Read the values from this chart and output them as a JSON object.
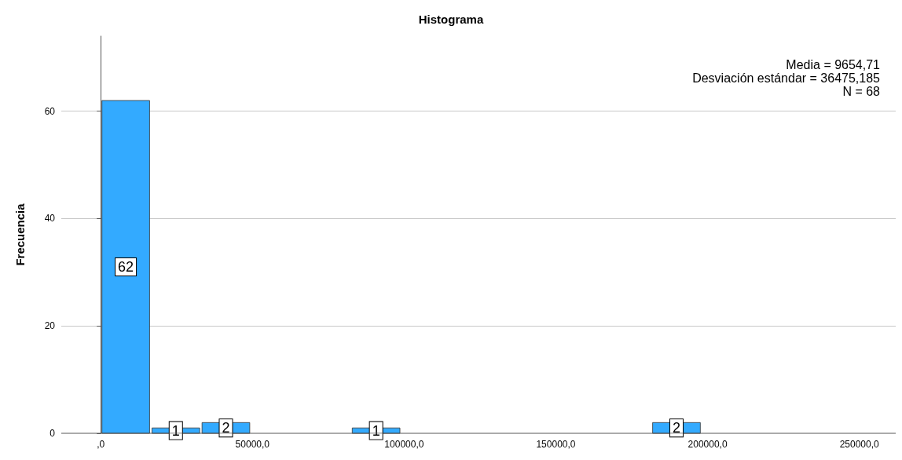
{
  "chart_data": {
    "type": "histogram",
    "title": "Histograma",
    "ylabel": "Frecuencia",
    "bins": [
      0,
      16500,
      33000,
      49500,
      66000,
      82500,
      99000,
      115500,
      132000,
      148500,
      165000,
      181500,
      198000
    ],
    "values": [
      62,
      1,
      2,
      0,
      0,
      1,
      0,
      0,
      0,
      0,
      0,
      2
    ],
    "color": "#33aaff",
    "xlim": [
      -13000,
      262000
    ],
    "xticks": [
      {
        "value": 0,
        "label": ",0"
      },
      {
        "value": 50000,
        "label": "50000,0"
      },
      {
        "value": 100000,
        "label": "100000,0"
      },
      {
        "value": 150000,
        "label": "150000,0"
      },
      {
        "value": 200000,
        "label": "200000,0"
      },
      {
        "value": 250000,
        "label": "250000,0"
      }
    ],
    "value_labels": [
      "62",
      "1",
      "2",
      null,
      null,
      "1",
      null,
      null,
      null,
      null,
      null,
      "2"
    ],
    "ylim": [
      0,
      74
    ],
    "yticks": [
      0,
      20,
      40,
      60
    ],
    "grid": "y",
    "annotations": [
      "Media = 9654,71",
      "Desviación estándar = 36475,185",
      "N = 68"
    ]
  }
}
